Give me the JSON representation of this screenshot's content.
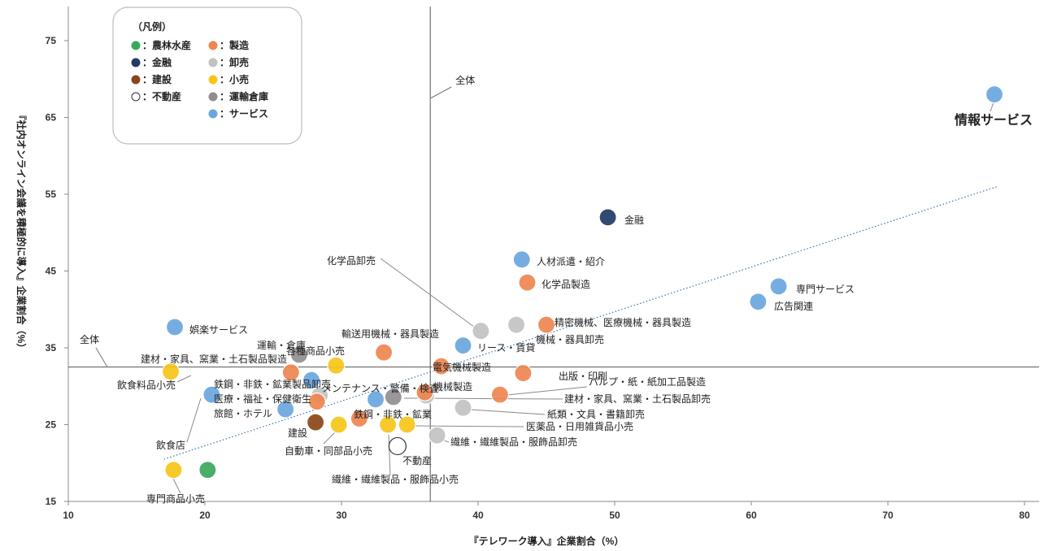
{
  "chart_data": {
    "type": "scatter",
    "xlabel": "『テレワーク導入』企業割合（%）",
    "ylabel": "『社内オンライン会議を積極的に導入』企業割合（%）",
    "xlim": [
      10,
      80
    ],
    "ylim": [
      15,
      80
    ],
    "xticks": [
      10,
      20,
      30,
      40,
      50,
      60,
      70,
      80
    ],
    "yticks": [
      15,
      25,
      35,
      45,
      55,
      65,
      75
    ],
    "overall": {
      "x": 36.5,
      "y": 32.5,
      "label": "全体"
    },
    "trendline": {
      "start": [
        17,
        20.5
      ],
      "end": [
        78,
        56
      ]
    },
    "legend": {
      "title": "（凡例）",
      "entries": [
        {
          "key": "agri",
          "label": "：農林水産",
          "color": "#3aa85a"
        },
        {
          "key": "mfg",
          "label": "：製造",
          "color": "#ee8650"
        },
        {
          "key": "fin",
          "label": "：金融",
          "color": "#233a66"
        },
        {
          "key": "whl",
          "label": "：卸売",
          "color": "#c2c2c2"
        },
        {
          "key": "con",
          "label": "：建設",
          "color": "#8a4518"
        },
        {
          "key": "ret",
          "label": "：小売",
          "color": "#f5c518"
        },
        {
          "key": "re",
          "label": "：不動産",
          "color": "#ffffff"
        },
        {
          "key": "trn",
          "label": "：運輸倉庫",
          "color": "#8f8f8f"
        },
        {
          "key": "svc",
          "label": "：サービス",
          "color": "#6aa6de"
        }
      ]
    },
    "points": [
      {
        "name": "情報サービス",
        "x": 77.8,
        "y": 68,
        "cat": "svc"
      },
      {
        "name": "金融",
        "x": 49.5,
        "y": 52,
        "cat": "fin"
      },
      {
        "name": "人材派遣・紹介",
        "x": 43.2,
        "y": 46.5,
        "cat": "svc"
      },
      {
        "name": "化学品製造",
        "x": 43.6,
        "y": 43.5,
        "cat": "mfg"
      },
      {
        "name": "専門サービス",
        "x": 62,
        "y": 43,
        "cat": "svc"
      },
      {
        "name": "広告関連",
        "x": 60.5,
        "y": 41,
        "cat": "svc"
      },
      {
        "name": "精密機械、医療機械・器具製造",
        "x": 45,
        "y": 38,
        "cat": "mfg"
      },
      {
        "name": "機械・器具卸売",
        "x": 42.8,
        "y": 38,
        "cat": "whl"
      },
      {
        "name": "化学品卸売",
        "x": 40.2,
        "y": 37.2,
        "cat": "whl"
      },
      {
        "name": "リース・賃貸",
        "x": 38.9,
        "y": 35.3,
        "cat": "svc"
      },
      {
        "name": "輸送用機械・器具製造",
        "x": 33.1,
        "y": 34.4,
        "cat": "mfg"
      },
      {
        "name": "電気機械製造",
        "x": 37.3,
        "y": 32.6,
        "cat": "mfg"
      },
      {
        "name": "出版・印刷",
        "x": 43.3,
        "y": 31.7,
        "cat": "mfg"
      },
      {
        "name": "パルプ・紙・紙加工品製造",
        "x": 41.6,
        "y": 28.9,
        "cat": "mfg"
      },
      {
        "name": "建材・家具、窯業・土石製品卸売",
        "x": 36.2,
        "y": 28.8,
        "cat": "whl"
      },
      {
        "name": "機械製造",
        "x": 36.1,
        "y": 29.2,
        "cat": "mfg"
      },
      {
        "name": "紙類・文具・書籍卸売",
        "x": 38.9,
        "y": 27.2,
        "cat": "whl"
      },
      {
        "name": "医薬品・日用雑貨品小売",
        "x": 34.8,
        "y": 25,
        "cat": "ret"
      },
      {
        "name": "繊維・繊維製品・服飾品卸売",
        "x": 37,
        "y": 23.6,
        "cat": "whl"
      },
      {
        "name": "不動産",
        "x": 34.1,
        "y": 22.2,
        "cat": "re"
      },
      {
        "name": "繊維・繊維製品・服飾品小売",
        "x": 33.4,
        "y": 25,
        "cat": "ret"
      },
      {
        "name": "メンテナンス・警備・検査",
        "x": 33.8,
        "y": 28.6,
        "cat": "trn"
      },
      {
        "name": "鉄鋼・非鉄・鉱業",
        "x": 31.3,
        "y": 25.8,
        "cat": "mfg"
      },
      {
        "name": "自動車・同部品小売",
        "x": 29.8,
        "y": 25,
        "cat": "ret"
      },
      {
        "name": "建設",
        "x": 28.1,
        "y": 25.3,
        "cat": "con"
      },
      {
        "name": "運輸・倉庫",
        "x": 26.9,
        "y": 34.1,
        "cat": "trn"
      },
      {
        "name": "各種商品小売",
        "x": 29.6,
        "y": 32.7,
        "cat": "ret"
      },
      {
        "name": "建材・家具、窯業・土石製品製造",
        "x": 26.3,
        "y": 31.8,
        "cat": "mfg"
      },
      {
        "name": "鉄鋼・非鉄・鉱業製品卸売",
        "x": 28.4,
        "y": 28.8,
        "cat": "whl"
      },
      {
        "name": "医療・福祉・保健衛生",
        "x": 28.2,
        "y": 28,
        "cat": "mfg"
      },
      {
        "name": "旅館・ホテル",
        "x": 25.9,
        "y": 27,
        "cat": "svc"
      },
      {
        "name": "娯楽サービス",
        "x": 17.8,
        "y": 37.7,
        "cat": "svc"
      },
      {
        "name": "飲食料品小売",
        "x": 17.5,
        "y": 31.9,
        "cat": "ret"
      },
      {
        "name": "飲食店",
        "x": 20.5,
        "y": 28.9,
        "cat": "svc"
      },
      {
        "name": "専門商品小売",
        "x": 17.7,
        "y": 19.1,
        "cat": "ret"
      },
      {
        "name": "農林水産",
        "x": 20.2,
        "y": 19.1,
        "cat": "agri"
      }
    ],
    "extra_points": [
      {
        "name": "service-mid",
        "x": 27.8,
        "y": 30.8,
        "cat": "svc"
      },
      {
        "name": "service-mid-2",
        "x": 32.5,
        "y": 28.3,
        "cat": "svc"
      }
    ]
  }
}
